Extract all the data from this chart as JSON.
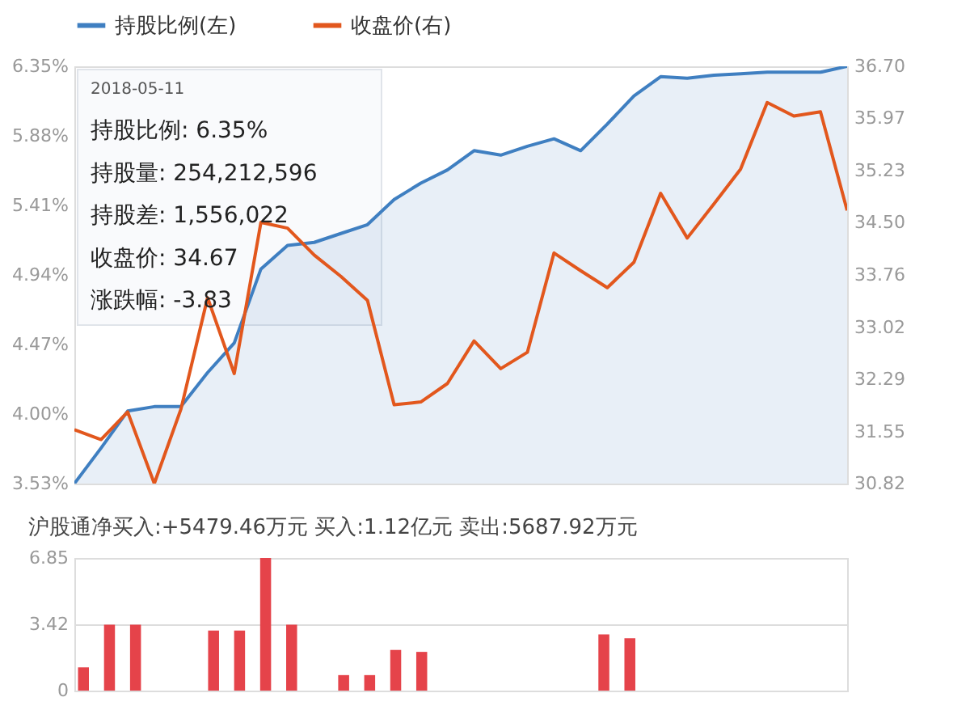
{
  "chart_data": [
    {
      "type": "line",
      "categories": [
        null,
        null,
        null,
        null,
        null,
        null,
        null,
        null,
        null,
        null,
        null,
        null,
        null,
        null,
        null,
        null,
        null,
        null,
        null,
        null,
        null,
        null,
        null,
        null,
        null,
        null,
        null,
        null,
        null,
        null
      ],
      "series": [
        {
          "name": "持股比例(左)",
          "type": "area",
          "color": "#3f7fc1",
          "values": [
            3.53,
            3.77,
            4.02,
            4.05,
            4.05,
            4.28,
            4.48,
            4.98,
            5.14,
            5.16,
            5.22,
            5.28,
            5.45,
            5.56,
            5.65,
            5.78,
            5.75,
            5.81,
            5.86,
            5.78,
            5.96,
            6.15,
            6.28,
            6.27,
            6.29,
            6.3,
            6.31,
            6.31,
            6.31,
            6.35
          ]
        },
        {
          "name": "收盘价(右)",
          "type": "line",
          "axis": "y2",
          "color": "#e2571d",
          "values": [
            31.58,
            31.44,
            31.83,
            30.82,
            31.87,
            33.44,
            32.37,
            34.5,
            34.42,
            34.04,
            33.74,
            33.4,
            31.93,
            31.97,
            32.23,
            32.83,
            32.44,
            32.67,
            34.07,
            33.82,
            33.58,
            33.94,
            34.91,
            34.28,
            34.76,
            35.25,
            36.19,
            36.0,
            36.06,
            34.67
          ]
        }
      ],
      "ylim": [
        3.53,
        6.35
      ],
      "yticks": [
        {
          "value": 3.53,
          "label": "3.53%"
        },
        {
          "value": 4.0,
          "label": "4.00%"
        },
        {
          "value": 4.47,
          "label": "4.47%"
        },
        {
          "value": 4.94,
          "label": "4.94%"
        },
        {
          "value": 5.41,
          "label": "5.41%"
        },
        {
          "value": 5.88,
          "label": "5.88%"
        },
        {
          "value": 6.35,
          "label": "6.35%"
        }
      ],
      "y2lim": [
        30.82,
        36.7
      ],
      "y2ticks": [
        30.82,
        31.55,
        32.29,
        33.02,
        33.76,
        {
          "value": 34.5,
          "label": "34.50"
        },
        35.23,
        35.97,
        {
          "value": 36.7,
          "label": "36.70"
        }
      ],
      "legend": "top left",
      "annotations": [
        "2018-05-11",
        "持股比例:  6.35%",
        "持股量:  254,212,596",
        "持股差:  1,556,022",
        "收盘价:  34.67",
        "涨跌幅:  -3.83"
      ]
    },
    {
      "type": "bar",
      "title": "沪股通净买入:+5479.46万元  买入:1.12亿元  卖出:5687.92万元",
      "categories": [
        null,
        null,
        null,
        null,
        null,
        null,
        null,
        null,
        null,
        null,
        null,
        null,
        null,
        null,
        null,
        null,
        null,
        null,
        null,
        null,
        null,
        null,
        null,
        null,
        null,
        null,
        null,
        null,
        null,
        null
      ],
      "values": [
        1.2,
        3.4,
        3.4,
        null,
        null,
        3.1,
        3.1,
        6.85,
        3.4,
        null,
        0.8,
        0.8,
        2.1,
        2.0,
        null,
        null,
        null,
        null,
        null,
        null,
        2.9,
        2.7,
        null,
        null,
        null,
        null,
        null,
        null,
        null,
        null
      ],
      "color": "#e5434a",
      "ylim": [
        0,
        6.85
      ],
      "yticks": [
        0,
        3.42,
        6.85
      ],
      "grid": "y"
    }
  ]
}
